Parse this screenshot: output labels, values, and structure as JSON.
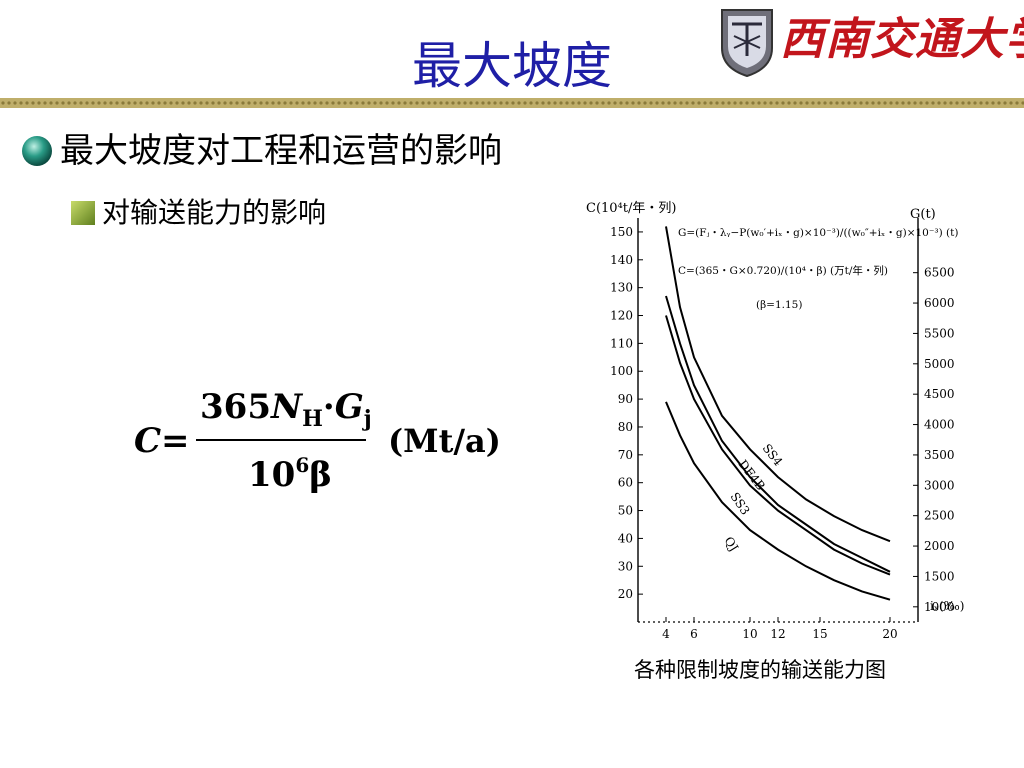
{
  "header": {
    "title": "最大坡度",
    "logo_text": "西南交通大学"
  },
  "bullets": {
    "level1": "最大坡度对工程和运营的影响",
    "level2": "对输送能力的影响"
  },
  "formula": {
    "lhs": "C=",
    "num_365": "365",
    "num_N": "N",
    "num_H": "H",
    "num_dot": "·",
    "num_G": "G",
    "num_j": "j",
    "den_10": "10",
    "den_6": "6",
    "den_beta": "β",
    "unit": "(Mt/a)"
  },
  "chart_caption": "各种限制坡度的输送能力图",
  "colors": {
    "title_blue": "#1f1fa6",
    "logo_red": "#c2151c",
    "bullet_teal": "#1e8a7a",
    "bullet_green": "#7a9a2a"
  },
  "chart_data": {
    "type": "line",
    "left_axis_label": "C(10⁴t/年・列)",
    "right_axis_label": "G(t)",
    "x_axis_label": "iₓ(‰)",
    "x_ticks": [
      4,
      6,
      10,
      12,
      15,
      20
    ],
    "xlim": [
      2,
      22
    ],
    "left_ticks": [
      20,
      30,
      40,
      50,
      60,
      70,
      80,
      90,
      100,
      110,
      120,
      130,
      140,
      150
    ],
    "left_ylim": [
      10,
      155
    ],
    "right_ticks": [
      1000,
      1500,
      2000,
      2500,
      3000,
      3500,
      4000,
      4500,
      5000,
      5500,
      6000,
      6500
    ],
    "right_ylim": [
      750,
      7400
    ],
    "annotations": [
      "G=(Fⱼ・λᵧ−P(w₀′+iₓ・g)×10⁻³)/((w₀″+iₓ・g)×10⁻³) (t)",
      "C=(365・G×0.720)/(10⁴・β) (万t/年・列)",
      "(β=1.15)"
    ],
    "series": [
      {
        "name": "SS4",
        "x": [
          4.0,
          5.0,
          6.0,
          8.0,
          10.0,
          12.0,
          14.0,
          16.0,
          18.0,
          20.0
        ],
        "values": [
          152,
          123,
          105,
          84,
          72,
          62,
          54,
          48,
          43,
          39
        ]
      },
      {
        "name": "DF4B",
        "x": [
          4.0,
          5.0,
          6.0,
          8.0,
          10.0,
          12.0,
          14.0,
          16.0,
          18.0,
          20.0
        ],
        "values": [
          127,
          110,
          95,
          75,
          62,
          52,
          45,
          38,
          33,
          28
        ]
      },
      {
        "name": "SS3",
        "x": [
          4.0,
          5.0,
          6.0,
          8.0,
          10.0,
          12.0,
          14.0,
          16.0,
          18.0,
          20.0
        ],
        "values": [
          120,
          103,
          90,
          72,
          59,
          50,
          43,
          36,
          31,
          27
        ]
      },
      {
        "name": "QJ",
        "x": [
          4.0,
          5.0,
          6.0,
          8.0,
          10.0,
          12.0,
          14.0,
          16.0,
          18.0,
          20.0
        ],
        "values": [
          89,
          77,
          67,
          53,
          43,
          36,
          30,
          25,
          21,
          18
        ]
      }
    ]
  }
}
